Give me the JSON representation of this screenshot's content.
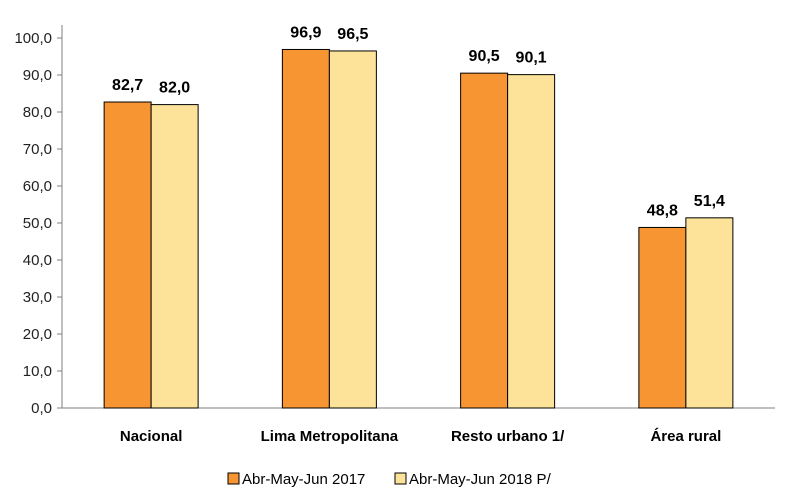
{
  "chart_data": {
    "type": "bar",
    "categories": [
      "Nacional",
      "Lima Metropolitana",
      "Resto urbano 1/",
      "Área rural"
    ],
    "series": [
      {
        "name": "Abr-May-Jun 2017",
        "values": [
          82.7,
          96.9,
          90.5,
          48.8
        ],
        "color": "#F79532",
        "labels": [
          "82,7",
          "96,9",
          "90,5",
          "48,8"
        ]
      },
      {
        "name": "Abr-May-Jun 2018 P/",
        "values": [
          82.0,
          96.5,
          90.1,
          51.4
        ],
        "color": "#FDE39A",
        "labels": [
          "82,0",
          "96,5",
          "90,1",
          "51,4"
        ]
      }
    ],
    "ylim": [
      0,
      100
    ],
    "yticks": [
      0,
      10,
      20,
      30,
      40,
      50,
      60,
      70,
      80,
      90,
      100
    ],
    "ytick_labels": [
      "0,0",
      "10,0",
      "20,0",
      "30,0",
      "40,0",
      "50,0",
      "60,0",
      "70,0",
      "80,0",
      "90,0",
      "100,0"
    ],
    "grid": false,
    "legend_position": "bottom",
    "bar_border_color": "#000000"
  }
}
